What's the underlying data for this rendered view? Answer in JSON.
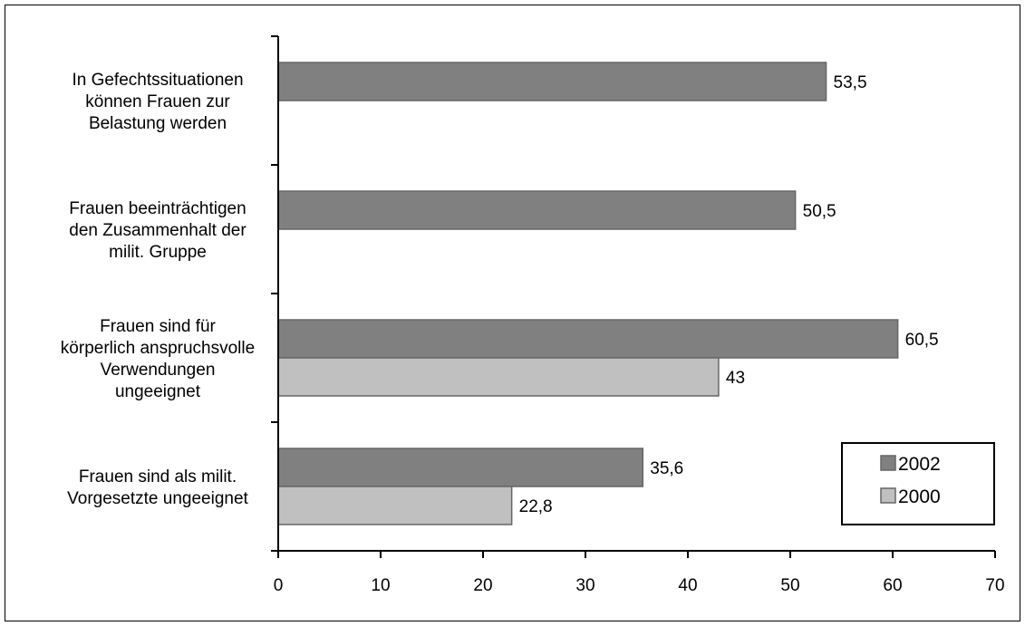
{
  "chart_data": {
    "type": "bar",
    "orientation": "horizontal",
    "categories": [
      [
        "In Gefechtssituationen",
        "können Frauen zur",
        "Belastung werden"
      ],
      [
        "Frauen beeinträchtigen",
        "den Zusammenhalt der",
        "milit. Gruppe"
      ],
      [
        "Frauen sind für",
        "körperlich anspruchsvolle",
        "Verwendungen",
        "ungeeignet"
      ],
      [
        "Frauen sind als milit.",
        "Vorgesetzte ungeeignet"
      ]
    ],
    "series": [
      {
        "name": "2002",
        "color": "#808080",
        "values": [
          53.5,
          50.5,
          60.5,
          35.6
        ],
        "labels": [
          "53,5",
          "50,5",
          "60,5",
          "35,6"
        ]
      },
      {
        "name": "2000",
        "color": "#c0c0c0",
        "values": [
          null,
          null,
          43,
          22.8
        ],
        "labels": [
          "",
          "",
          "43",
          "22,8"
        ]
      }
    ],
    "xlim": [
      0,
      70
    ],
    "xticks": [
      0,
      10,
      20,
      30,
      40,
      50,
      60,
      70
    ],
    "legend": "bottom-right",
    "grid": false,
    "title": "",
    "xlabel": "",
    "ylabel": ""
  }
}
